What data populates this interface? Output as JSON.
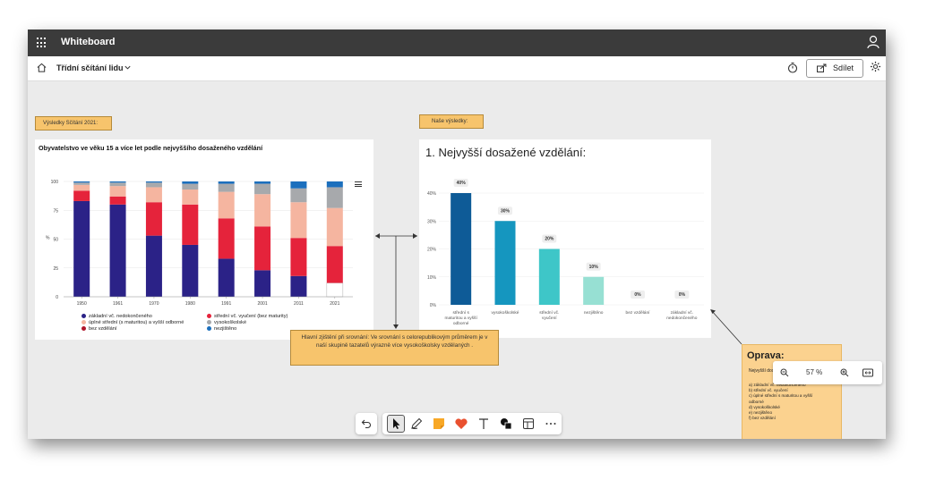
{
  "app": {
    "title": "Whiteboard"
  },
  "toolbar": {
    "board_name": "Třídní sčítání lidu",
    "share_label": "Sdílet"
  },
  "notes": {
    "left_label": "Výsledky Sčítání 2021:",
    "right_label": "Naše výsledky:",
    "main": "Hlavní zjištění při srovnání: Ve srovnání s celorepublikovým průměrem je v naší skupině tazatelů výrazně více vysokoškolsky vzdělaných ."
  },
  "oprava": {
    "title": "Oprava:",
    "subtitle": "Nejvyšší dosažené vzdělání:",
    "items": [
      "a) základní vč. nedokončeného",
      "b) střední vč. vyučení",
      "c) úplné střední s maturitou a vyšší",
      "odborné",
      "d) vysokoškolské",
      "e) nezjištěno",
      "f) bez vzdělání"
    ]
  },
  "zoom": {
    "level": "57 %"
  },
  "colors": {
    "accent_dark": "#3b3b3b",
    "note_yellow": "#f7c46c",
    "oprava_yellow": "#fbd28f"
  },
  "icons": [
    "waffle-icon",
    "user-icon",
    "home-icon",
    "chevron-down-icon",
    "timer-icon",
    "share-icon",
    "gear-icon",
    "undo-icon",
    "select-icon",
    "pen-icon",
    "sticky-note-icon",
    "reaction-icon",
    "text-icon",
    "shapes-icon",
    "template-icon",
    "more-icon",
    "zoom-out-icon",
    "zoom-in-icon",
    "fit-screen-icon",
    "chart-menu-icon"
  ],
  "chart_data": [
    {
      "type": "bar",
      "stacked": true,
      "title": "Obyvatelstvo ve věku 15 a více let podle nejvyššího dosaženého vzdělání",
      "ylabel": "%",
      "ylim": [
        0,
        100
      ],
      "yticks": [
        "0",
        "25",
        "50",
        "75",
        "100"
      ],
      "categories": [
        "1950",
        "1961",
        "1970",
        "1980",
        "1991",
        "2001",
        "2011",
        "2021"
      ],
      "series": [
        {
          "name": "základní vč. nedokončeného",
          "color": "#2b2287",
          "values": [
            83,
            80,
            53,
            45,
            33,
            23,
            18,
            0
          ]
        },
        {
          "name": "střední vč. vyučení (bez maturity)",
          "color": "#e5233b",
          "values": [
            9,
            7,
            29,
            35,
            35,
            38,
            33,
            32
          ]
        },
        {
          "name": "úplné střední (s maturitou) a vyšší odborné",
          "color": "#f5b5a0",
          "values": [
            5,
            9,
            13,
            13,
            23,
            28,
            31,
            33
          ]
        },
        {
          "name": "vysokoškolské",
          "color": "#a7a9ac",
          "values": [
            2,
            3,
            4,
            5,
            7,
            9,
            12,
            18
          ]
        },
        {
          "name": "bez vzdělání",
          "color": "#b0152a",
          "values": [
            0,
            0,
            0,
            0,
            0,
            0,
            0,
            0
          ]
        },
        {
          "name": "nezjištěno",
          "color": "#1b6fbd",
          "values": [
            1,
            1,
            1,
            2,
            2,
            2,
            6,
            5
          ]
        }
      ],
      "highlight_2021_base": 12,
      "legend_position": "bottom"
    },
    {
      "type": "bar",
      "title": "1. Nejvyšší dosažené vzdělání:",
      "ylim": [
        0,
        40
      ],
      "yticks": [
        "0%",
        "10%",
        "20%",
        "30%",
        "40%"
      ],
      "categories": [
        "střední s maturitou a vyšší odborné",
        "vysokoškolské",
        "střední vč. vyučení",
        "nezjištěno",
        "bez vzdělání",
        "základní vč. nedokončeného"
      ],
      "category_lines": [
        [
          "střední s",
          "maturitou a vyšší",
          "odborné"
        ],
        [
          "vysokoškolské"
        ],
        [
          "střední vč.",
          "vyučení"
        ],
        [
          "nezjištěno"
        ],
        [
          "bez vzdělání"
        ],
        [
          "základní vč.",
          "nedokončeného"
        ]
      ],
      "values": [
        40,
        30,
        20,
        10,
        0,
        0
      ],
      "labels": [
        "40%",
        "30%",
        "20%",
        "10%",
        "0%",
        "0%"
      ],
      "colors": [
        "#0e5b97",
        "#1596bf",
        "#3ec6c8",
        "#97e0d3",
        "#cccccc",
        "#cccccc"
      ],
      "grid": true
    }
  ]
}
